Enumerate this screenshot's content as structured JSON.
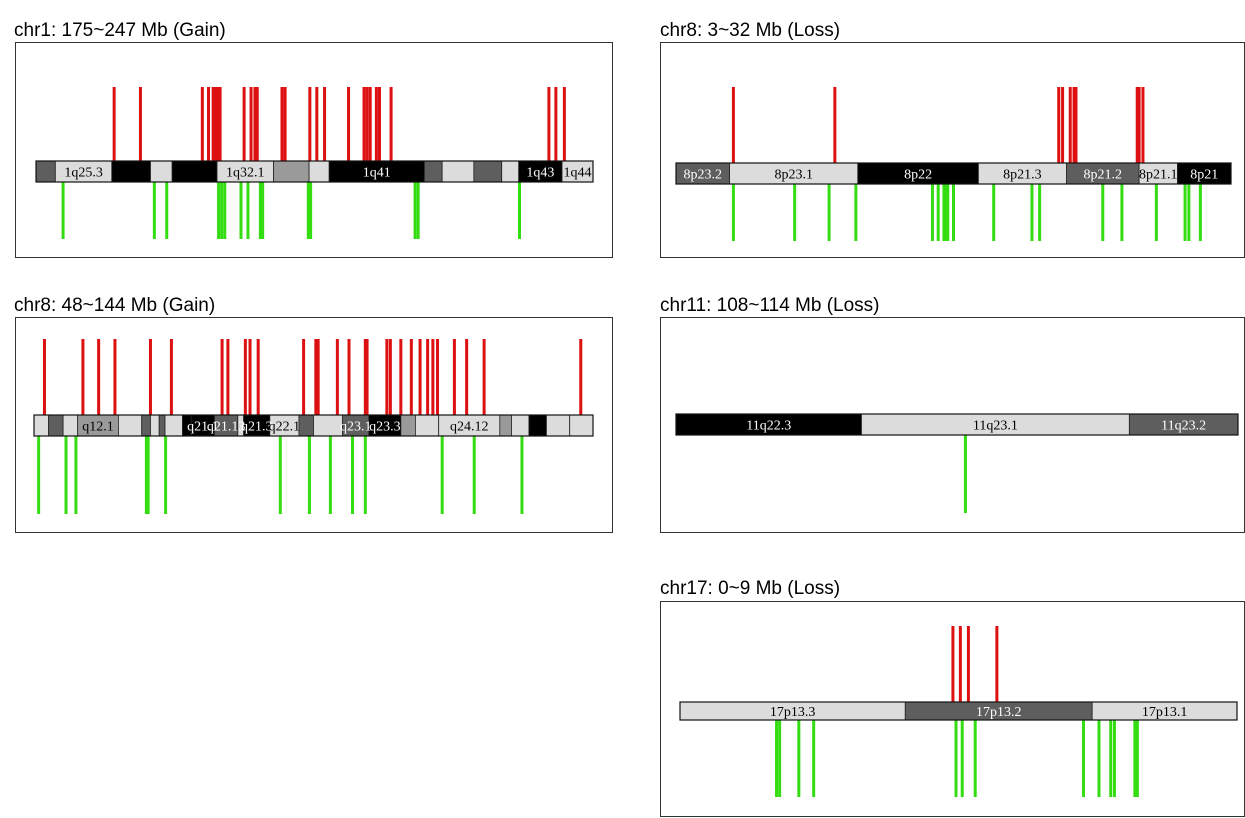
{
  "colors": {
    "gain": "#dd1111",
    "loss": "#33dd11",
    "stain_black": "#000000",
    "stain_dark": "#5e5e5e",
    "stain_mid": "#9a9a9a",
    "stain_light": "#dcdcdc"
  },
  "panels": [
    {
      "id": "chr1",
      "title": "chr1: 175~247 Mb (Gain)",
      "range_mb": [
        175,
        247
      ],
      "bands": [
        {
          "label": "",
          "start": 175,
          "end": 177.5,
          "stain": "dark"
        },
        {
          "label": "1q25.3",
          "start": 177.5,
          "end": 184.8,
          "stain": "light"
        },
        {
          "label": "",
          "start": 184.8,
          "end": 189.8,
          "stain": "black"
        },
        {
          "label": "",
          "start": 189.8,
          "end": 192.6,
          "stain": "light"
        },
        {
          "label": "",
          "start": 192.6,
          "end": 198.4,
          "stain": "black"
        },
        {
          "label": "1q32.1",
          "start": 198.4,
          "end": 205.7,
          "stain": "light"
        },
        {
          "label": "",
          "start": 205.7,
          "end": 210.3,
          "stain": "mid"
        },
        {
          "label": "",
          "start": 210.3,
          "end": 212.9,
          "stain": "light"
        },
        {
          "label": "1q41",
          "start": 212.9,
          "end": 225.2,
          "stain": "black"
        },
        {
          "label": "",
          "start": 225.2,
          "end": 227.5,
          "stain": "dark"
        },
        {
          "label": "",
          "start": 227.5,
          "end": 231.6,
          "stain": "light"
        },
        {
          "label": "",
          "start": 231.6,
          "end": 235.2,
          "stain": "dark"
        },
        {
          "label": "",
          "start": 235.2,
          "end": 237.4,
          "stain": "light"
        },
        {
          "label": "1q43",
          "start": 237.4,
          "end": 243.0,
          "stain": "black"
        },
        {
          "label": "1q44",
          "start": 243.0,
          "end": 247,
          "stain": "light"
        }
      ],
      "gain": [
        185.1,
        188.5,
        196.5,
        197.3,
        197.9,
        198.1,
        198.4,
        198.6,
        198.8,
        201.9,
        202.8,
        203.3,
        203.6,
        206.8,
        207.2,
        210.4,
        211.3,
        212.3,
        215.4,
        217.4,
        217.8,
        218.2,
        219.0,
        219.4,
        220.9,
        241.3,
        242.2,
        243.3
      ],
      "loss": [
        178.5,
        190.3,
        191.9,
        198.6,
        199.0,
        199.4,
        201.5,
        202.4,
        204.0,
        204.3,
        210.2,
        210.5,
        224.0,
        224.4,
        237.5
      ]
    },
    {
      "id": "chr8p",
      "title": "chr8: 3~32 Mb (Loss)",
      "range_mb": [
        3,
        32
      ],
      "bands": [
        {
          "label": "8p23.2",
          "start": 3,
          "end": 5.8,
          "stain": "dark"
        },
        {
          "label": "8p23.1",
          "start": 5.8,
          "end": 12.5,
          "stain": "light"
        },
        {
          "label": "8p22",
          "start": 12.5,
          "end": 18.8,
          "stain": "black"
        },
        {
          "label": "8p21.3",
          "start": 18.8,
          "end": 23.4,
          "stain": "light"
        },
        {
          "label": "8p21.2",
          "start": 23.4,
          "end": 27.2,
          "stain": "dark"
        },
        {
          "label": "8p21.1",
          "start": 27.2,
          "end": 29.2,
          "stain": "light"
        },
        {
          "label": "8p21",
          "start": 29.2,
          "end": 32,
          "stain": "black"
        }
      ],
      "gain": [
        6.0,
        11.3,
        23.0,
        23.2,
        23.6,
        23.8,
        23.9,
        27.1,
        27.2,
        27.4
      ],
      "loss": [
        6.0,
        9.2,
        11.0,
        12.4,
        16.4,
        16.7,
        17.0,
        17.1,
        17.2,
        17.5,
        19.6,
        21.6,
        22.0,
        25.3,
        26.3,
        28.1,
        29.6,
        29.8,
        30.4
      ]
    },
    {
      "id": "chr8q",
      "title": "chr8: 48~144 Mb (Gain)",
      "range_mb": [
        48,
        144
      ],
      "bands": [
        {
          "label": "",
          "start": 48,
          "end": 50.5,
          "stain": "light"
        },
        {
          "label": "",
          "start": 50.5,
          "end": 53.0,
          "stain": "dark"
        },
        {
          "label": "",
          "start": 53.0,
          "end": 55.5,
          "stain": "light"
        },
        {
          "label": "q12.1",
          "start": 55.5,
          "end": 62.5,
          "stain": "mid"
        },
        {
          "label": "",
          "start": 62.5,
          "end": 66.5,
          "stain": "light"
        },
        {
          "label": "",
          "start": 66.5,
          "end": 68.0,
          "stain": "dark"
        },
        {
          "label": "",
          "start": 68.0,
          "end": 69.5,
          "stain": "light"
        },
        {
          "label": "",
          "start": 69.5,
          "end": 70.5,
          "stain": "dark"
        },
        {
          "label": "",
          "start": 70.5,
          "end": 73.5,
          "stain": "light"
        },
        {
          "label": "",
          "start": 73.5,
          "end": 75.0,
          "stain": "black"
        },
        {
          "label": "q21.1",
          "start": 75.0,
          "end": 79.0,
          "stain": "black"
        },
        {
          "label": "q21.13",
          "start": 79.0,
          "end": 83.0,
          "stain": "dark"
        },
        {
          "label": "",
          "start": 83.0,
          "end": 84.0,
          "stain": "light"
        },
        {
          "label": "q21.3",
          "start": 84.0,
          "end": 88.5,
          "stain": "black"
        },
        {
          "label": "q22.1",
          "start": 88.5,
          "end": 93.5,
          "stain": "light"
        },
        {
          "label": "",
          "start": 93.5,
          "end": 96.0,
          "stain": "dark"
        },
        {
          "label": "",
          "start": 96.0,
          "end": 101.0,
          "stain": "light"
        },
        {
          "label": "q23.1",
          "start": 101.0,
          "end": 105.5,
          "stain": "dark"
        },
        {
          "label": "q23.3",
          "start": 105.5,
          "end": 111.0,
          "stain": "black"
        },
        {
          "label": "",
          "start": 111.0,
          "end": 113.5,
          "stain": "mid"
        },
        {
          "label": "",
          "start": 113.5,
          "end": 117.5,
          "stain": "light"
        },
        {
          "label": "q24.12",
          "start": 117.5,
          "end": 128.0,
          "stain": "light"
        },
        {
          "label": "",
          "start": 128.0,
          "end": 130.0,
          "stain": "mid"
        },
        {
          "label": "",
          "start": 130.0,
          "end": 133.0,
          "stain": "light"
        },
        {
          "label": "",
          "start": 133.0,
          "end": 136.0,
          "stain": "black"
        },
        {
          "label": "",
          "start": 136.0,
          "end": 140.0,
          "stain": "light"
        },
        {
          "label": "",
          "start": 140.0,
          "end": 144,
          "stain": "light"
        }
      ],
      "gain": [
        49.8,
        56.4,
        59.1,
        61.9,
        68.0,
        71.6,
        80.3,
        81.3,
        84.3,
        85.1,
        86.5,
        94.3,
        96.4,
        96.8,
        100.1,
        102.1,
        104.9,
        105.2,
        108.6,
        109.2,
        111.0,
        112.8,
        114.3,
        115.6,
        116.5,
        117.3,
        120.2,
        122.3,
        125.3,
        141.9
      ],
      "loss": [
        48.8,
        53.5,
        55.2,
        67.3,
        67.6,
        70.6,
        90.3,
        95.3,
        98.9,
        102.7,
        104.9,
        118.1,
        123.6,
        131.8
      ]
    },
    {
      "id": "chr11",
      "title": "chr11: 108~114 Mb (Loss)",
      "range_mb": [
        108,
        114
      ],
      "bands": [
        {
          "label": "11q22.3",
          "start": 108,
          "end": 109.98,
          "stain": "black"
        },
        {
          "label": "11q23.1",
          "start": 109.98,
          "end": 112.84,
          "stain": "light"
        },
        {
          "label": "11q23.2",
          "start": 112.84,
          "end": 114,
          "stain": "dark"
        }
      ],
      "gain": [],
      "loss": [
        111.09
      ]
    },
    {
      "id": "chr17",
      "title": "chr17: 0~9 Mb (Loss)",
      "range_mb": [
        0,
        9
      ],
      "bands": [
        {
          "label": "17p13.3",
          "start": 0,
          "end": 3.64,
          "stain": "light"
        },
        {
          "label": "17p13.2",
          "start": 3.64,
          "end": 6.66,
          "stain": "dark"
        },
        {
          "label": "17p13.1",
          "start": 6.66,
          "end": 9,
          "stain": "light"
        }
      ],
      "gain": [
        4.41,
        4.53,
        4.66,
        5.12
      ],
      "loss": [
        1.56,
        1.61,
        1.92,
        2.16,
        4.46,
        4.56,
        4.77,
        6.52,
        6.77,
        6.96,
        7.02,
        7.35,
        7.39
      ]
    }
  ]
}
